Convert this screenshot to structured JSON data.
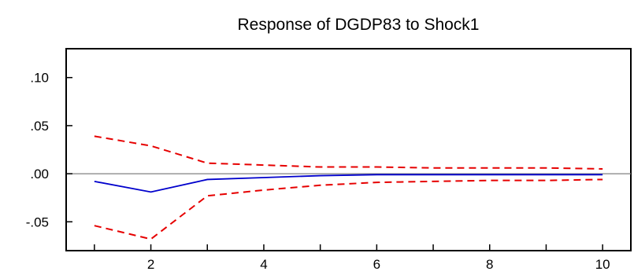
{
  "chart_data": {
    "type": "line",
    "title": "Response of DGDP83 to Shock1",
    "xlabel": "",
    "ylabel": "",
    "x": [
      1,
      2,
      3,
      4,
      5,
      6,
      7,
      8,
      9,
      10
    ],
    "xlim": [
      0.5,
      10.5
    ],
    "ylim": [
      -0.08,
      0.13
    ],
    "x_ticks": [
      2,
      4,
      6,
      8,
      10
    ],
    "x_tick_labels": [
      "2",
      "4",
      "6",
      "8",
      "10"
    ],
    "y_ticks": [
      0.1,
      0.05,
      0.0,
      -0.05
    ],
    "y_tick_labels": [
      ".10",
      ".05",
      ".00",
      "-.05"
    ],
    "grid": false,
    "zero_line": true,
    "legend": "none",
    "series": [
      {
        "role": "response",
        "color": "#0000cc",
        "dash": "solid",
        "values": [
          -0.008,
          -0.019,
          -0.006,
          -0.004,
          -0.002,
          -0.001,
          -0.001,
          -0.001,
          -0.001,
          -0.001
        ]
      },
      {
        "role": "upper-band",
        "color": "#e60000",
        "dash": "dashed",
        "values": [
          0.039,
          0.029,
          0.011,
          0.009,
          0.007,
          0.007,
          0.006,
          0.006,
          0.006,
          0.005
        ]
      },
      {
        "role": "lower-band",
        "color": "#e60000",
        "dash": "dashed",
        "values": [
          -0.054,
          -0.068,
          -0.023,
          -0.017,
          -0.012,
          -0.009,
          -0.008,
          -0.007,
          -0.007,
          -0.006
        ]
      }
    ]
  }
}
